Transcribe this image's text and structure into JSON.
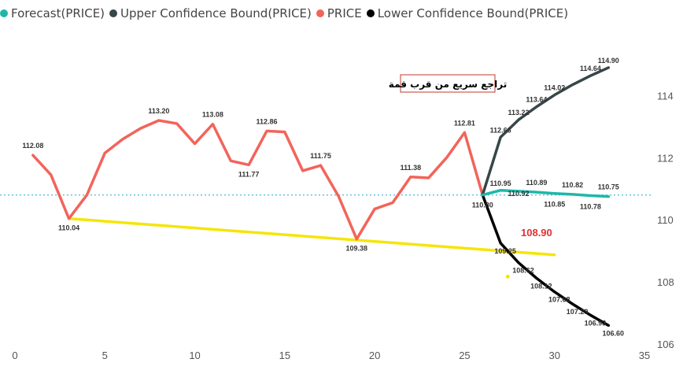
{
  "legend": [
    {
      "label": "Forecast(PRICE)",
      "color": "#1fb7a8"
    },
    {
      "label": "Upper Confidence Bound(PRICE)",
      "color": "#374649"
    },
    {
      "label": "PRICE",
      "color": "#f2645a"
    },
    {
      "label": "Lower Confidence Bound(PRICE)",
      "color": "#000000"
    }
  ],
  "annotation": {
    "text": "تراجع سريع من قرب قمة",
    "border_color": "#c0392b"
  },
  "highlight_label": {
    "text": "108.90",
    "color": "#e03131"
  },
  "chart_data": {
    "type": "line",
    "xlim": [
      0,
      35
    ],
    "ylim": [
      106,
      115
    ],
    "x_ticks": [
      0,
      5,
      10,
      15,
      20,
      25,
      30,
      35
    ],
    "y_ticks": [
      106,
      108,
      110,
      112,
      114
    ],
    "series": [
      {
        "name": "PRICE",
        "color": "#f2645a",
        "x": [
          1,
          2,
          3,
          4,
          5,
          6,
          7,
          8,
          9,
          10,
          11,
          12,
          13,
          14,
          15,
          16,
          17,
          18,
          19,
          20,
          21,
          22,
          23,
          24,
          25,
          26
        ],
        "values": [
          112.08,
          111.45,
          110.04,
          110.8,
          112.15,
          112.6,
          112.95,
          113.2,
          113.1,
          112.45,
          113.08,
          111.9,
          111.77,
          112.86,
          112.83,
          111.58,
          111.75,
          110.75,
          109.38,
          110.35,
          110.55,
          111.38,
          111.35,
          112.0,
          112.81,
          110.8
        ],
        "labels": {
          "1": "112.08",
          "3": "110.04",
          "8": "113.20",
          "11": "113.08",
          "13": "111.77",
          "14": "112.86",
          "17": "111.75",
          "19": "109.38",
          "22": "111.38",
          "25": "112.81",
          "26": "110.80"
        }
      },
      {
        "name": "Forecast(PRICE)",
        "color": "#1fb7a8",
        "x": [
          26,
          27,
          28,
          29,
          30,
          31,
          32,
          33
        ],
        "values": [
          110.8,
          110.95,
          110.92,
          110.89,
          110.85,
          110.82,
          110.78,
          110.75
        ],
        "labels": [
          "110.80",
          "110.95",
          "110.92",
          "110.89",
          "110.85",
          "110.82",
          "110.78",
          "110.75"
        ]
      },
      {
        "name": "Upper Confidence Bound(PRICE)",
        "color": "#374649",
        "x": [
          26,
          27,
          28,
          29,
          30,
          31,
          32,
          33
        ],
        "values": [
          110.8,
          112.66,
          113.22,
          113.64,
          114.02,
          114.35,
          114.64,
          114.9
        ],
        "labels": [
          "",
          "112.66",
          "113.22",
          "113.64",
          "114.02",
          "",
          "114.64",
          "114.90"
        ]
      },
      {
        "name": "Lower Confidence Bound(PRICE)",
        "color": "#000000",
        "x": [
          26,
          27,
          28,
          29,
          30,
          31,
          32,
          33
        ],
        "values": [
          110.8,
          109.25,
          108.62,
          108.12,
          107.68,
          107.29,
          106.93,
          106.6
        ],
        "labels": [
          "",
          "109.25",
          "108.62",
          "108.12",
          "107.68",
          "107.29",
          "106.93",
          "106.60"
        ]
      }
    ],
    "reference_line": {
      "y": 110.8,
      "color": "#5bc0de",
      "style": "dotted"
    },
    "trendline": {
      "x": [
        3,
        30
      ],
      "values": [
        110.04,
        108.87
      ],
      "color": "#f5e50a"
    },
    "marker": {
      "x": 27.4,
      "y": 108.17,
      "color": "#f5e50a"
    }
  }
}
